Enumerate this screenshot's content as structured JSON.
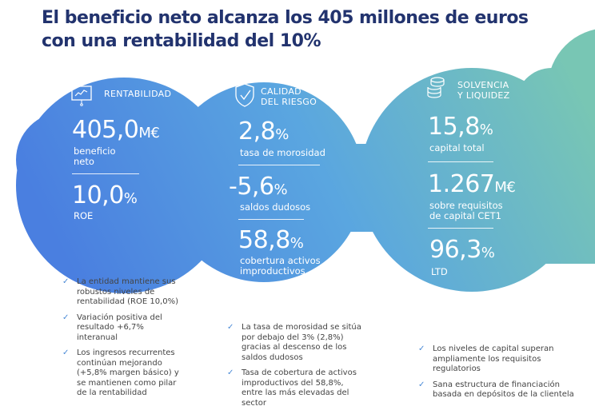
{
  "title": {
    "line1": "El beneficio neto alcanza los 405 millones de euros",
    "line2": "con una rentabilidad del 10%"
  },
  "colors": {
    "title": "#22336e",
    "blue": "#4f86e0",
    "teal": "#74c3b6",
    "check": "#4a8ad6"
  },
  "sections": [
    {
      "icon": "presentation-chart-icon",
      "heading": [
        "RENTABILIDAD"
      ],
      "metrics": [
        {
          "value": "405,0",
          "unit": "M€",
          "label": [
            "beneficio",
            "neto"
          ]
        },
        {
          "value": "10,0",
          "unit": "%",
          "label": [
            "ROE"
          ]
        }
      ],
      "bullets": [
        "La entidad mantiene sus robustos niveles de rentabilidad (ROE 10,0%)",
        "Variación positiva del resultado +6,7% interanual",
        "Los ingresos recurrentes continúan mejorando (+5,8% margen básico) y se mantienen como pilar de la rentabilidad"
      ]
    },
    {
      "icon": "shield-check-icon",
      "heading": [
        "CALIDAD",
        "DEL RIESGO"
      ],
      "metrics": [
        {
          "value": "2,8",
          "unit": "%",
          "label": [
            "tasa de morosidad"
          ]
        },
        {
          "value": "-5,6",
          "unit": "%",
          "label": [
            "saldos dudosos"
          ]
        },
        {
          "value": "58,8",
          "unit": "%",
          "label": [
            "cobertura activos",
            "improductivos"
          ]
        }
      ],
      "bullets": [
        "La tasa de morosidad se sitúa por debajo del 3% (2,8%) gracias al descenso de los saldos dudosos",
        "Tasa de cobertura de activos improductivos del 58,8%, entre las más elevadas del sector"
      ]
    },
    {
      "icon": "coin-stack-icon",
      "heading": [
        "SOLVENCIA",
        "Y LIQUIDEZ"
      ],
      "metrics": [
        {
          "value": "15,8",
          "unit": "%",
          "label": [
            "capital total"
          ]
        },
        {
          "value": "1.267",
          "unit": "M€",
          "label": [
            "sobre requisitos",
            "de capital CET1"
          ]
        },
        {
          "value": "96,3",
          "unit": "%",
          "label": [
            "LTD"
          ]
        }
      ],
      "bullets": [
        "Los niveles de capital superan ampliamente los requisitos regulatorios",
        "Sana estructura de financiación basada en depósitos de la clientela"
      ]
    }
  ]
}
